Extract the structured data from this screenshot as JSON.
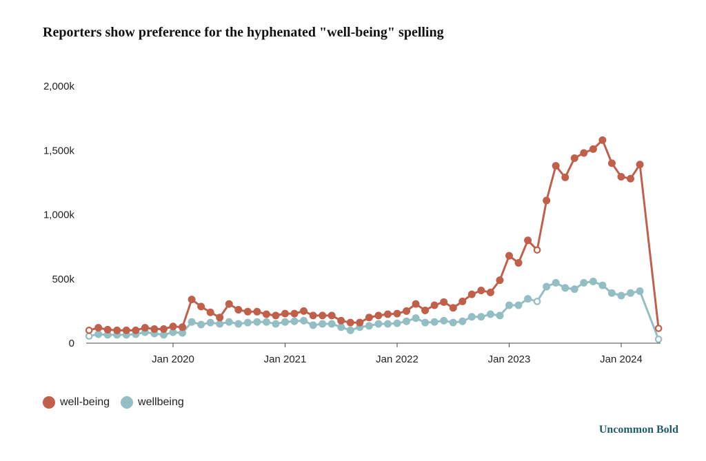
{
  "title": "Reporters show preference for the hyphenated \"well-being\" spelling",
  "brand": "Uncommon Bold",
  "chart_data": {
    "type": "line",
    "title": "Reporters show preference for the hyphenated \"well-being\" spelling",
    "xlabel": "",
    "ylabel": "",
    "ylim": [
      0,
      2000000
    ],
    "y_ticks": [
      0,
      500000,
      1000000,
      1500000,
      2000000
    ],
    "y_tick_labels": [
      "0",
      "500k",
      "1,000k",
      "1,500k",
      "2,000k"
    ],
    "x_ticks": [
      "2020-01",
      "2021-01",
      "2022-01",
      "2023-01",
      "2024-01"
    ],
    "x_tick_labels": [
      "Jan 2020",
      "Jan 2021",
      "Jan 2022",
      "Jan 2023",
      "Jan 2024"
    ],
    "x": [
      "2019-04",
      "2019-05",
      "2019-06",
      "2019-07",
      "2019-08",
      "2019-09",
      "2019-10",
      "2019-11",
      "2019-12",
      "2020-01",
      "2020-02",
      "2020-03",
      "2020-04",
      "2020-05",
      "2020-06",
      "2020-07",
      "2020-08",
      "2020-09",
      "2020-10",
      "2020-11",
      "2020-12",
      "2021-01",
      "2021-02",
      "2021-03",
      "2021-04",
      "2021-05",
      "2021-06",
      "2021-07",
      "2021-08",
      "2021-09",
      "2021-10",
      "2021-11",
      "2021-12",
      "2022-01",
      "2022-02",
      "2022-03",
      "2022-04",
      "2022-05",
      "2022-06",
      "2022-07",
      "2022-08",
      "2022-09",
      "2022-10",
      "2022-11",
      "2022-12",
      "2023-01",
      "2023-02",
      "2023-03",
      "2023-04",
      "2023-05",
      "2023-06",
      "2023-07",
      "2023-08",
      "2023-09",
      "2023-10",
      "2023-11",
      "2023-12",
      "2024-01",
      "2024-02",
      "2024-03",
      "2024-04",
      "2024-05"
    ],
    "grid": false,
    "legend_position": "bottom-left",
    "series": [
      {
        "name": "well-being",
        "color": "#c0604b",
        "values": [
          100000,
          120000,
          105000,
          100000,
          100000,
          100000,
          120000,
          110000,
          110000,
          130000,
          125000,
          340000,
          285000,
          240000,
          200000,
          305000,
          260000,
          245000,
          245000,
          225000,
          215000,
          230000,
          230000,
          250000,
          215000,
          215000,
          215000,
          175000,
          160000,
          160000,
          200000,
          215000,
          225000,
          230000,
          250000,
          305000,
          255000,
          295000,
          320000,
          275000,
          325000,
          380000,
          410000,
          395000,
          490000,
          680000,
          625000,
          800000,
          725000,
          1110000,
          1380000,
          1290000,
          1440000,
          1480000,
          1510000,
          1580000,
          1400000,
          1295000,
          1280000,
          1390000,
          null,
          115000
        ],
        "hollow_points": [
          "2019-04",
          "2023-04",
          "2024-05"
        ],
        "dotted_segment_from": "2024-04"
      },
      {
        "name": "wellbeing",
        "color": "#93bfc4",
        "values": [
          55000,
          70000,
          65000,
          65000,
          65000,
          70000,
          85000,
          75000,
          65000,
          85000,
          80000,
          165000,
          145000,
          160000,
          150000,
          165000,
          150000,
          160000,
          165000,
          165000,
          150000,
          165000,
          170000,
          175000,
          140000,
          150000,
          150000,
          125000,
          100000,
          125000,
          135000,
          150000,
          150000,
          155000,
          170000,
          195000,
          160000,
          165000,
          175000,
          160000,
          170000,
          205000,
          205000,
          225000,
          215000,
          295000,
          295000,
          345000,
          325000,
          440000,
          470000,
          430000,
          420000,
          470000,
          480000,
          450000,
          390000,
          370000,
          390000,
          405000,
          null,
          30000
        ],
        "hollow_points": [
          "2019-04",
          "2023-04",
          "2024-05"
        ],
        "dotted_segment_from": "2024-04"
      }
    ]
  }
}
